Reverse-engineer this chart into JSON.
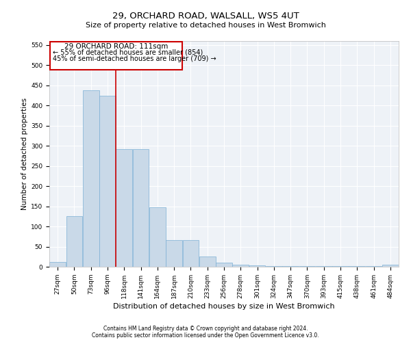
{
  "title1": "29, ORCHARD ROAD, WALSALL, WS5 4UT",
  "title2": "Size of property relative to detached houses in West Bromwich",
  "xlabel": "Distribution of detached houses by size in West Bromwich",
  "ylabel": "Number of detached properties",
  "footnote1": "Contains HM Land Registry data © Crown copyright and database right 2024.",
  "footnote2": "Contains public sector information licensed under the Open Government Licence v3.0.",
  "annotation_line1": "29 ORCHARD ROAD: 111sqm",
  "annotation_line2": "← 55% of detached houses are smaller (854)",
  "annotation_line3": "45% of semi-detached houses are larger (709) →",
  "property_size": 111,
  "bar_color": "#c9d9e8",
  "bar_edge_color": "#7bafd4",
  "vline_color": "#cc0000",
  "background_color": "#eef2f7",
  "grid_color": "#ffffff",
  "bin_labels": [
    "27sqm",
    "50sqm",
    "73sqm",
    "96sqm",
    "118sqm",
    "141sqm",
    "164sqm",
    "187sqm",
    "210sqm",
    "233sqm",
    "256sqm",
    "278sqm",
    "301sqm",
    "324sqm",
    "347sqm",
    "370sqm",
    "393sqm",
    "415sqm",
    "438sqm",
    "461sqm",
    "484sqm"
  ],
  "values": [
    12,
    125,
    438,
    425,
    292,
    292,
    147,
    67,
    67,
    25,
    10,
    5,
    3,
    2,
    2,
    1,
    1,
    1,
    1,
    1,
    5
  ],
  "ylim": [
    0,
    560
  ],
  "yticks": [
    0,
    50,
    100,
    150,
    200,
    250,
    300,
    350,
    400,
    450,
    500,
    550
  ],
  "title1_fontsize": 9.5,
  "title2_fontsize": 8,
  "ylabel_fontsize": 7.5,
  "xlabel_fontsize": 8,
  "tick_fontsize": 6.5,
  "footnote_fontsize": 5.5
}
